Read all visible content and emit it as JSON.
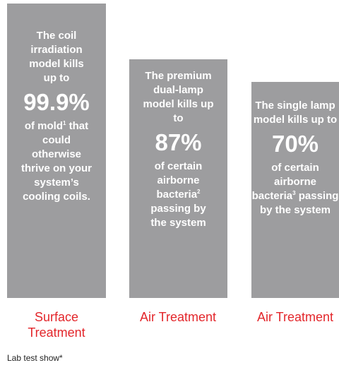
{
  "panels": [
    {
      "intro": "The coil irradiation model kills up to",
      "stat": "99.9%",
      "detail_start": "of mold",
      "note": "1",
      "detail_end": " that could otherwise thrive on your system’s cooling coils.",
      "label": "Surface Treatment"
    },
    {
      "intro": "The premium dual-lamp model kills up to",
      "stat": "87%",
      "detail_start": "of certain airborne bacteria",
      "note": "2",
      "detail_end": " passing by the system",
      "label": "Air Treatment"
    },
    {
      "intro": "The single lamp model kills up to",
      "stat": "70%",
      "detail_start": "of certain airborne bacteria",
      "note": "3",
      "detail_end": " passing by the system",
      "label": "Air Treatment"
    }
  ],
  "footer": "Lab test show*"
}
